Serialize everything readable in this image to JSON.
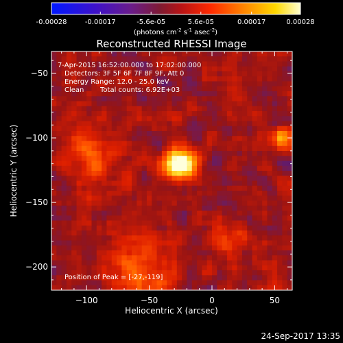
{
  "chart_data": {
    "type": "heatmap",
    "title": "Reconstructed RHESSI Image",
    "colorbar": {
      "ticks": [
        "-0.00028",
        "-0.00017",
        "-5.6e-05",
        "5.6e-05",
        "0.00017",
        "0.00028"
      ],
      "values": [
        -0.00028,
        -0.00017,
        -5.6e-05,
        5.6e-05,
        0.00017,
        0.00028
      ],
      "label_main": "(photons cm",
      "label_sup1": "-2",
      "label_mid": " s",
      "label_sup2": "-1",
      "label_end": " asec",
      "label_sup3": "-2",
      "label_close": ")",
      "range": [
        -0.00028,
        0.00028
      ]
    },
    "xlabel": "Heliocentric X (arcsec)",
    "ylabel": "Heliocentric Y (arcsec)",
    "xlim": [
      -128,
      64
    ],
    "ylim": [
      -218,
      -33
    ],
    "xticks": [
      -100,
      -50,
      0,
      50
    ],
    "xtick_labels": [
      "−100",
      "−50",
      "0",
      "50"
    ],
    "yticks": [
      -50,
      -100,
      -150,
      -200
    ],
    "ytick_labels": [
      "−50",
      "−100",
      "−150",
      "−200"
    ],
    "annotations": [
      "7-Apr-2015 16:52:00.000 to 17:02:00.000",
      "Detectors: 3F 5F 6F 7F 8F 9F, Att 0",
      "Energy Range: 12.0 - 25.0 keV",
      "Clean",
      "Total counts: 6.92E+03"
    ],
    "peak_label": "Position of Peak = [-27,-119]",
    "peak": {
      "x": -27,
      "y": -119,
      "value": 0.00028
    },
    "grid": false,
    "colormap": [
      "#000000",
      "#1e0cff",
      "#5a1aa8",
      "#8a1e3c",
      "#d21e10",
      "#ff5a00",
      "#ffb000",
      "#ffff60",
      "#ffffff"
    ]
  },
  "footer": {
    "timestamp": "24-Sep-2017 13:35"
  }
}
